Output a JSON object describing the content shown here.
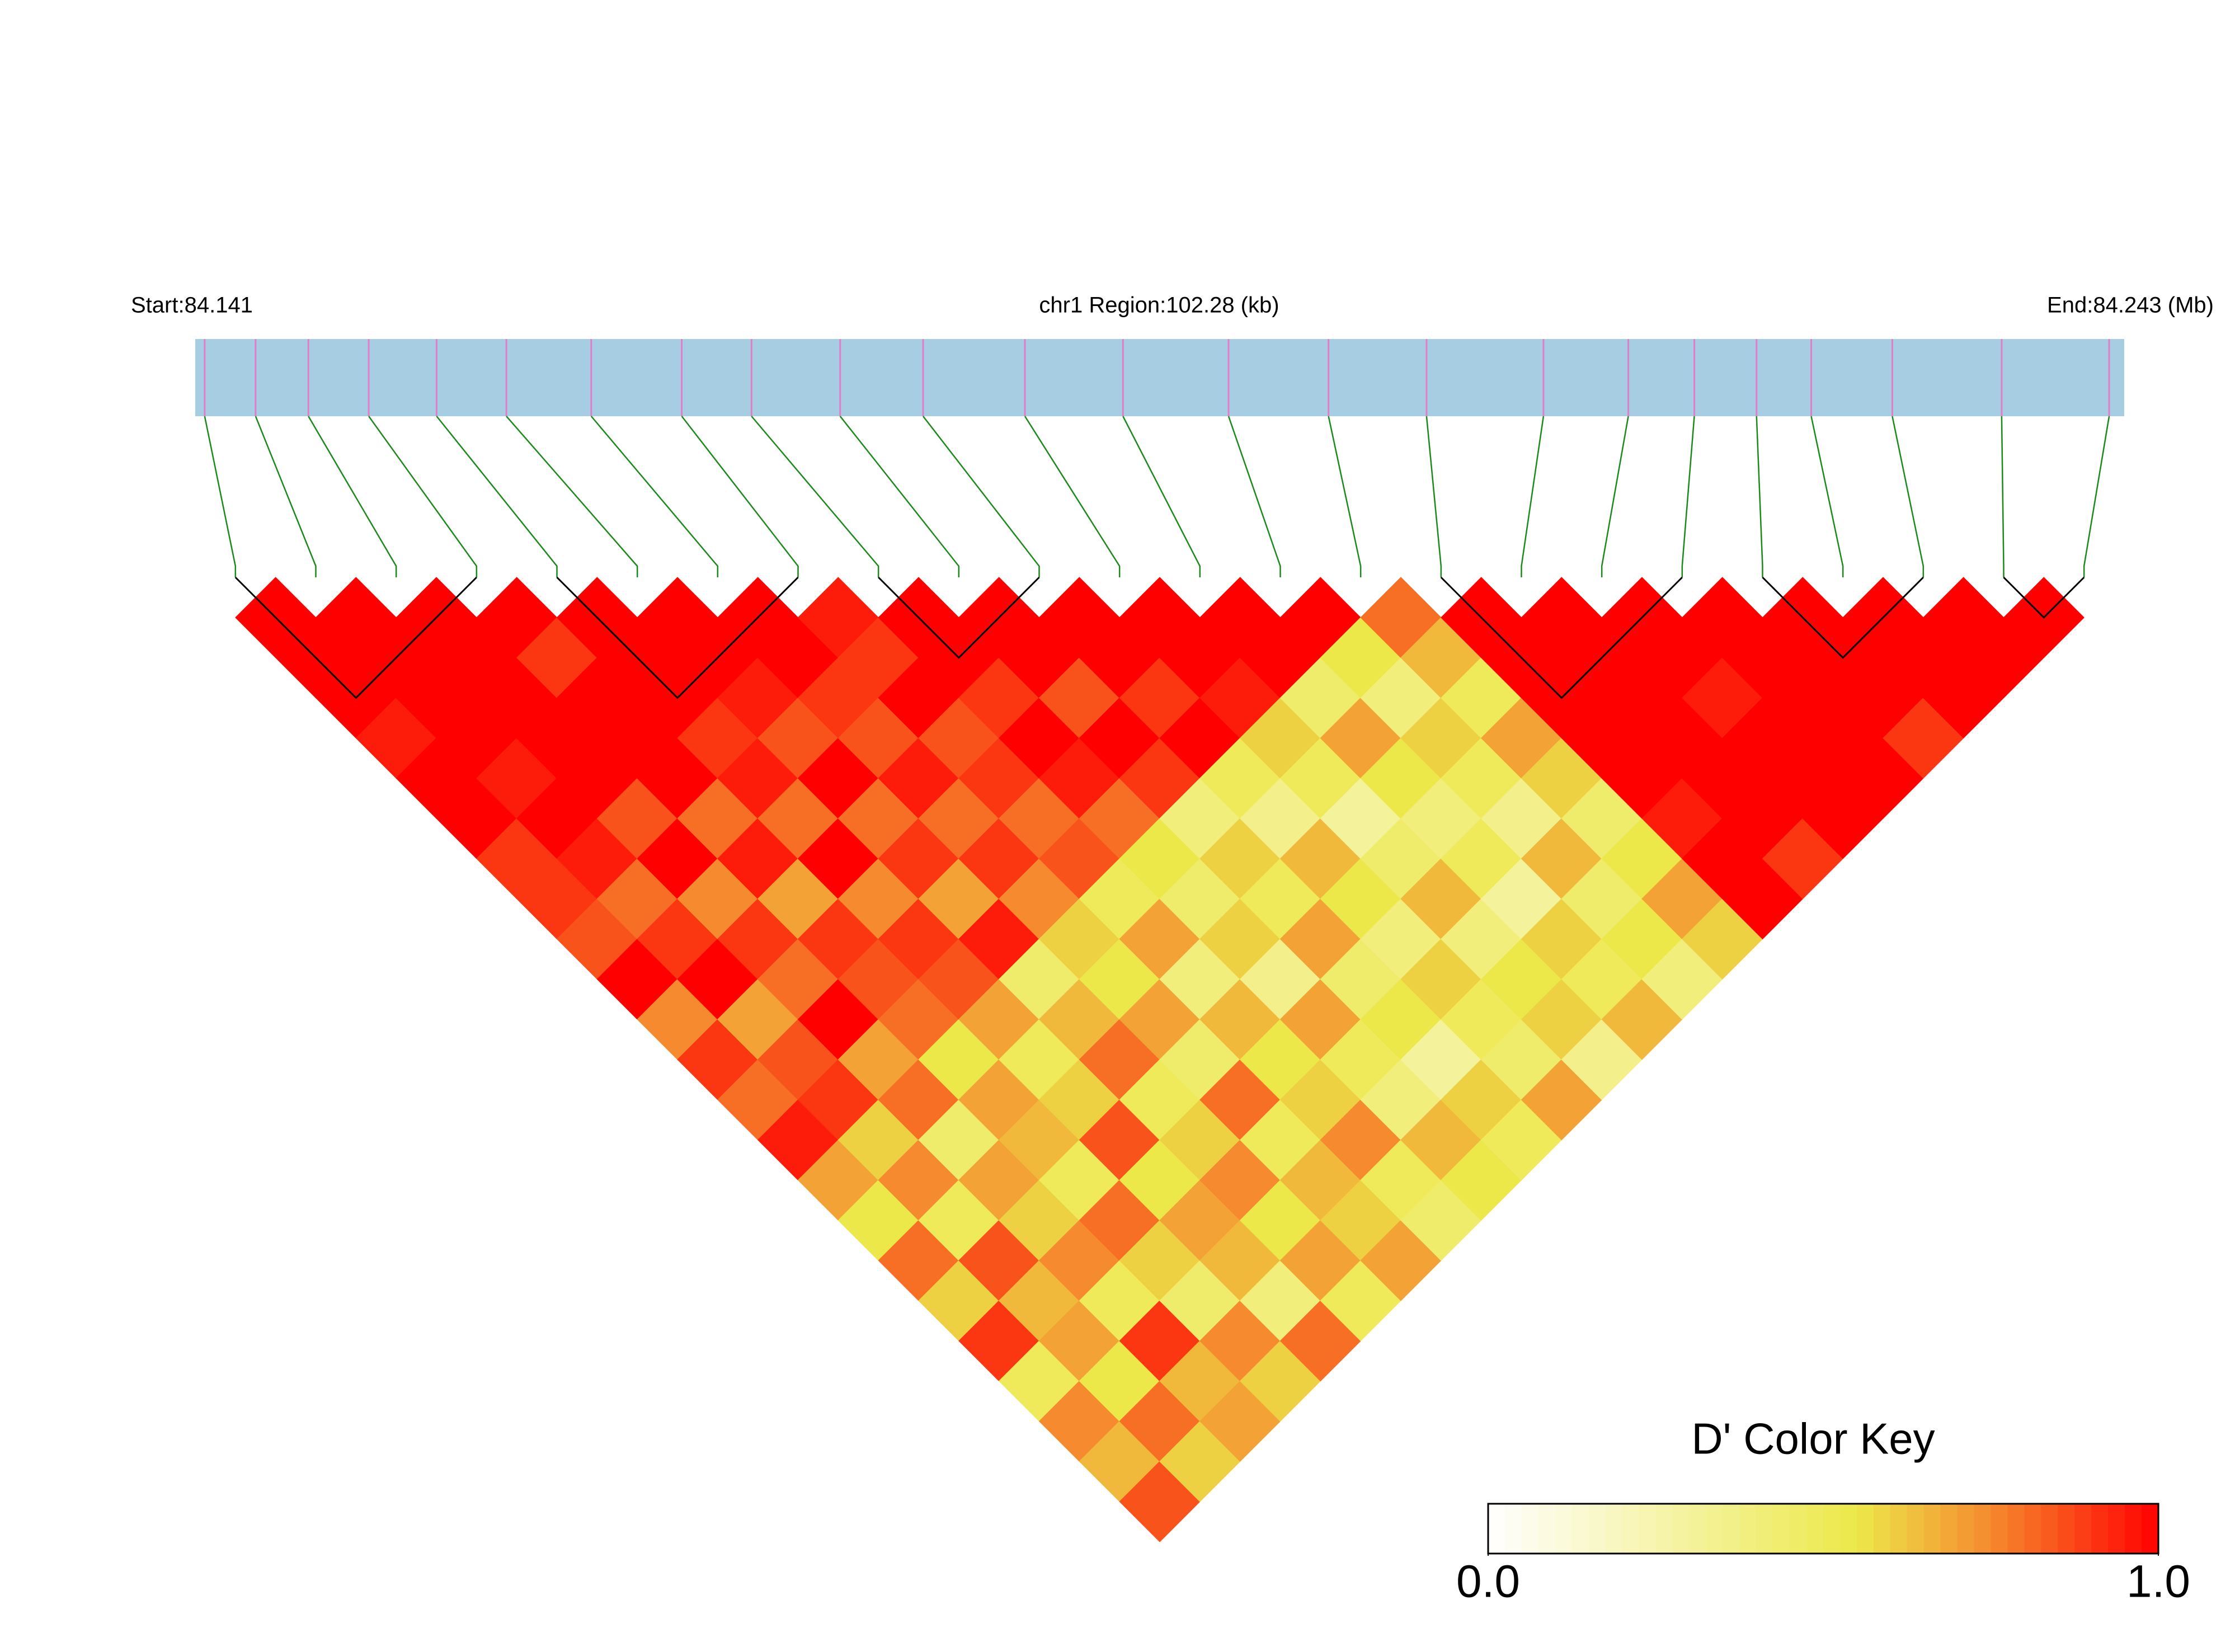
{
  "chart_data": {
    "type": "ld-heatmap",
    "start_label": "Start:84.141",
    "region_label": "chr1 Region:102.28 (kb)",
    "end_label": "End:84.243 (Mb)",
    "xlim": [
      84.141,
      84.2433
    ],
    "positions": [
      84.1415,
      84.1442,
      84.147,
      84.1502,
      84.1538,
      84.1575,
      84.162,
      84.1668,
      84.1705,
      84.1752,
      84.1796,
      84.185,
      84.1902,
      84.1958,
      84.2011,
      84.2063,
      84.2125,
      84.217,
      84.2205,
      84.2238,
      84.2267,
      84.231,
      84.2368,
      84.2425
    ],
    "dprime": [
      [
        1,
        1,
        1,
        0.95,
        1,
        1,
        0.9,
        0.9,
        0.85,
        1,
        0.75,
        0.9,
        0.8,
        0.95,
        0.7,
        0.55,
        0.8,
        0.6,
        0.9,
        0.5,
        0.75,
        0.65,
        0.85
      ],
      [
        1,
        1,
        1,
        1,
        0.95,
        1,
        0.95,
        0.8,
        0.9,
        1,
        0.7,
        0.85,
        0.9,
        0.6,
        0.75,
        0.5,
        0.85,
        0.65,
        0.7,
        0.55,
        0.8,
        0.6
      ],
      [
        1,
        1,
        1,
        1,
        1,
        0.85,
        1,
        0.75,
        0.9,
        0.8,
        1,
        0.7,
        0.8,
        0.45,
        0.7,
        0.6,
        0.75,
        0.5,
        0.9,
        0.65,
        0.7
      ],
      [
        1,
        0.9,
        1,
        1,
        1,
        0.8,
        0.95,
        0.7,
        0.9,
        0.85,
        0.8,
        0.55,
        0.7,
        0.65,
        0.5,
        0.8,
        0.6,
        0.45,
        0.75,
        0.6
      ],
      [
        1,
        1,
        1,
        0.9,
        0.95,
        0.8,
        1,
        0.75,
        0.9,
        0.85,
        0.7,
        0.5,
        0.6,
        0.85,
        0.55,
        0.7,
        0.65,
        0.4,
        0.8
      ],
      [
        1,
        1,
        0.95,
        0.85,
        1,
        0.8,
        0.9,
        0.7,
        0.95,
        0.45,
        0.65,
        0.8,
        0.5,
        0.6,
        0.75,
        0.55,
        0.7,
        0.5
      ],
      [
        1,
        1,
        0.9,
        0.85,
        0.95,
        0.8,
        0.9,
        0.75,
        0.6,
        0.55,
        0.7,
        0.45,
        0.8,
        0.5,
        0.65,
        0.6,
        0.7
      ],
      [
        0.95,
        0.9,
        1,
        0.85,
        0.9,
        0.8,
        0.85,
        0.5,
        0.7,
        0.4,
        0.65,
        0.55,
        0.6,
        0.75,
        0.5,
        0.45
      ],
      [
        1,
        1,
        0.9,
        1,
        0.95,
        0.8,
        0.55,
        0.45,
        0.6,
        0.35,
        0.7,
        0.5,
        0.4,
        0.65,
        0.55
      ],
      [
        1,
        1,
        0.85,
        1,
        0.9,
        0.4,
        0.6,
        0.5,
        0.7,
        0.45,
        0.55,
        0.3,
        0.6,
        0.5
      ],
      [
        1,
        1,
        0.9,
        1,
        0.5,
        0.35,
        0.65,
        0.55,
        0.4,
        0.6,
        0.5,
        0.45,
        0.7
      ],
      [
        1,
        1,
        0.95,
        0.6,
        0.5,
        0.3,
        0.45,
        0.65,
        0.4,
        0.55,
        0.6,
        0.35
      ],
      [
        1,
        1,
        0.45,
        0.7,
        0.55,
        0.4,
        0.5,
        0.3,
        0.6,
        0.5,
        0.65
      ],
      [
        1,
        0.55,
        0.4,
        0.6,
        0.5,
        0.35,
        0.65,
        0.45,
        0.55,
        0.4
      ],
      [
        0.8,
        0.65,
        0.5,
        0.7,
        0.6,
        0.45,
        0.55,
        0.7,
        0.6
      ],
      [
        1,
        1,
        1,
        1,
        1,
        0.95,
        1,
        1
      ],
      [
        1,
        1,
        1,
        1,
        1,
        1,
        0.9
      ],
      [
        1,
        1,
        0.95,
        1,
        1,
        1
      ],
      [
        1,
        1,
        1,
        1,
        1
      ],
      [
        1,
        1,
        1,
        0.9
      ],
      [
        1,
        1,
        1
      ],
      [
        1,
        1
      ],
      [
        1
      ]
    ],
    "blocks": [
      [
        0,
        3
      ],
      [
        4,
        7
      ],
      [
        8,
        10
      ],
      [
        15,
        18
      ],
      [
        19,
        21
      ],
      [
        22,
        23
      ]
    ],
    "colorscale": [
      [
        0,
        "#ffffff"
      ],
      [
        0.55,
        "#ece84a"
      ],
      [
        0.75,
        "#f58a2e"
      ],
      [
        1,
        "#ff0000"
      ]
    ],
    "bar_color": "#a6cde2",
    "snp_color": "#e07fc8",
    "link_color": "#1a8a1a",
    "key_title": "D' Color Key",
    "key_lim": [
      0,
      1
    ],
    "key_ticks": [
      {
        "value": 0,
        "label": "0.0"
      },
      {
        "value": 1,
        "label": "1.0"
      }
    ]
  }
}
